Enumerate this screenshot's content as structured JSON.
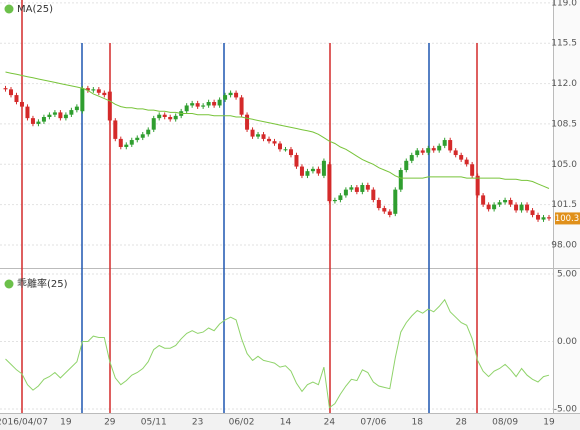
{
  "chart_data": [
    {
      "type": "candlestick",
      "title": "MA(25)",
      "up_color": "#2f9e2f",
      "down_color": "#d42a2a",
      "ylim": [
        96.0,
        119.25
      ],
      "yticks": [
        {
          "value": 119,
          "label": "119.0"
        },
        115.5,
        {
          "value": 112,
          "label": "112.0"
        },
        108.5,
        {
          "value": 105,
          "label": "105.0"
        },
        101.5,
        {
          "value": 98,
          "label": "98.00"
        }
      ],
      "grid": true,
      "last_value": 100.3,
      "last_color": "#e0901a",
      "open": [
        111.6,
        111.5,
        111.0,
        110.4,
        110.0,
        109.0,
        108.5,
        108.7,
        109.1,
        109.3,
        109.5,
        109.0,
        109.3,
        109.7,
        109.6,
        111.6,
        111.4,
        111.5,
        111.2,
        111.3,
        108.8,
        107.2,
        106.5,
        106.7,
        107.1,
        107.3,
        107.6,
        108.0,
        109.0,
        109.3,
        109.1,
        108.9,
        109.2,
        109.6,
        110.1,
        110.3,
        110.0,
        110.1,
        110.4,
        110.1,
        110.6,
        111.0,
        111.2,
        110.8,
        109.3,
        108.0,
        107.4,
        107.6,
        107.2,
        107.0,
        106.8,
        106.3,
        106.3,
        105.8,
        104.8,
        104.0,
        104.4,
        104.6,
        104.0,
        105.0,
        101.8,
        101.9,
        102.3,
        102.8,
        103.0,
        102.6,
        103.2,
        102.8,
        101.9,
        101.2,
        100.9,
        100.7,
        102.8,
        104.5,
        105.3,
        105.8,
        106.2,
        106.0,
        106.4,
        106.2,
        106.6,
        107.1,
        106.2,
        105.8,
        105.4,
        105.0,
        104.0,
        102.3,
        101.5,
        101.1,
        101.5,
        101.7,
        101.9,
        101.5,
        101.0,
        101.5,
        101.0,
        100.6,
        100.2,
        100.4
      ],
      "high": [
        111.8,
        111.7,
        111.2,
        110.6,
        110.2,
        109.2,
        108.9,
        109.3,
        109.5,
        109.7,
        109.7,
        109.5,
        109.9,
        110.2,
        111.8,
        111.8,
        111.7,
        111.7,
        111.4,
        111.5,
        109.0,
        107.4,
        106.9,
        107.3,
        107.5,
        107.8,
        108.2,
        109.2,
        109.5,
        109.5,
        109.3,
        109.4,
        109.8,
        110.3,
        110.5,
        110.5,
        110.3,
        110.6,
        110.6,
        110.8,
        111.2,
        111.4,
        111.4,
        111.0,
        109.5,
        108.2,
        107.8,
        107.8,
        107.4,
        107.2,
        107.0,
        106.5,
        106.5,
        106.0,
        105.0,
        104.6,
        104.8,
        104.8,
        105.5,
        105.2,
        102.1,
        102.5,
        103.0,
        103.2,
        103.2,
        103.4,
        103.4,
        103.0,
        102.1,
        101.4,
        101.1,
        103.0,
        104.7,
        105.5,
        106.0,
        106.4,
        106.4,
        106.6,
        106.6,
        106.8,
        107.3,
        107.3,
        106.4,
        106.0,
        105.6,
        105.2,
        104.2,
        102.5,
        101.7,
        101.7,
        101.9,
        102.1,
        102.1,
        101.7,
        101.7,
        101.7,
        101.2,
        100.8,
        100.6,
        100.6
      ],
      "low": [
        111.3,
        110.8,
        110.2,
        109.8,
        108.8,
        108.3,
        108.3,
        108.5,
        108.9,
        109.1,
        108.8,
        108.8,
        109.1,
        109.5,
        109.4,
        111.2,
        111.2,
        111.0,
        110.8,
        108.6,
        107.0,
        106.3,
        106.3,
        106.5,
        106.9,
        107.1,
        107.4,
        107.8,
        108.8,
        108.9,
        108.7,
        108.7,
        109.0,
        109.4,
        109.9,
        109.8,
        109.8,
        109.9,
        109.9,
        109.9,
        110.4,
        110.8,
        110.6,
        109.1,
        107.8,
        107.2,
        107.2,
        107.0,
        106.8,
        106.6,
        106.1,
        106.1,
        105.6,
        104.6,
        103.8,
        103.8,
        104.2,
        104.0,
        103.8,
        101.6,
        101.6,
        101.7,
        102.1,
        102.6,
        102.4,
        102.4,
        102.6,
        101.7,
        101.0,
        100.7,
        100.4,
        100.5,
        102.6,
        104.3,
        105.1,
        105.6,
        105.8,
        105.8,
        106.0,
        106.0,
        106.4,
        106.0,
        105.6,
        105.2,
        104.8,
        103.8,
        102.1,
        101.3,
        100.9,
        100.9,
        101.3,
        101.5,
        101.3,
        100.8,
        100.8,
        100.8,
        100.4,
        100.0,
        100.0,
        100.1
      ],
      "close": [
        111.5,
        111.0,
        110.4,
        110.0,
        109.0,
        108.5,
        108.7,
        109.1,
        109.3,
        109.5,
        109.0,
        109.3,
        109.7,
        110.0,
        111.6,
        111.4,
        111.5,
        111.2,
        111.0,
        108.8,
        107.2,
        106.5,
        106.7,
        107.1,
        107.3,
        107.6,
        108.0,
        109.0,
        109.3,
        109.1,
        108.9,
        109.2,
        109.6,
        110.1,
        110.3,
        110.0,
        110.1,
        110.4,
        110.1,
        110.6,
        111.0,
        111.2,
        110.8,
        109.3,
        108.0,
        107.4,
        107.6,
        107.2,
        107.0,
        106.8,
        106.3,
        106.3,
        105.8,
        104.8,
        104.0,
        104.4,
        104.6,
        104.2,
        105.3,
        101.8,
        101.9,
        102.3,
        102.8,
        103.0,
        102.6,
        103.2,
        102.8,
        101.9,
        101.2,
        100.9,
        100.6,
        102.8,
        104.5,
        105.3,
        105.8,
        106.2,
        106.0,
        106.4,
        106.2,
        106.6,
        107.1,
        106.2,
        105.8,
        105.4,
        105.0,
        104.0,
        102.3,
        101.5,
        101.1,
        101.5,
        101.7,
        101.9,
        101.5,
        101.0,
        101.5,
        101.0,
        100.6,
        100.2,
        100.4,
        100.3
      ],
      "series": [
        {
          "name": "MA(25)",
          "color": "#78c43a",
          "values": [
            113.0,
            112.9,
            112.8,
            112.7,
            112.6,
            112.5,
            112.4,
            112.3,
            112.2,
            112.1,
            112.0,
            111.9,
            111.8,
            111.7,
            111.6,
            111.4,
            111.1,
            110.9,
            110.7,
            110.5,
            110.2,
            110.0,
            109.9,
            109.9,
            109.8,
            109.8,
            109.7,
            109.7,
            109.6,
            109.6,
            109.5,
            109.5,
            109.4,
            109.4,
            109.4,
            109.3,
            109.3,
            109.3,
            109.2,
            109.2,
            109.2,
            109.2,
            109.1,
            109.1,
            109.0,
            108.9,
            108.8,
            108.7,
            108.6,
            108.5,
            108.4,
            108.3,
            108.2,
            108.1,
            108.0,
            107.9,
            107.8,
            107.6,
            107.3,
            107.0,
            106.8,
            106.5,
            106.3,
            106.0,
            105.7,
            105.4,
            105.2,
            105.0,
            104.7,
            104.5,
            104.3,
            104.0,
            103.8,
            103.8,
            103.8,
            103.8,
            103.8,
            103.9,
            103.9,
            103.9,
            103.9,
            103.9,
            103.9,
            103.9,
            103.8,
            103.8,
            103.8,
            103.8,
            103.8,
            103.8,
            103.8,
            103.7,
            103.7,
            103.7,
            103.6,
            103.6,
            103.5,
            103.3,
            103.1,
            102.9
          ]
        }
      ]
    },
    {
      "type": "line",
      "title": "乖離率(25)",
      "ylim": [
        -5.3,
        5.3
      ],
      "yticks": [
        {
          "value": 5,
          "label": "5.00"
        },
        {
          "value": 0,
          "label": "0.00"
        },
        {
          "value": -5,
          "label": "-5.00"
        }
      ],
      "grid": true,
      "categories": [
        null,
        null,
        null,
        "2016/04/07",
        null,
        null,
        null,
        null,
        null,
        null,
        null,
        "19",
        null,
        null,
        null,
        null,
        null,
        null,
        null,
        "29",
        null,
        null,
        null,
        null,
        null,
        null,
        null,
        "05/11",
        null,
        null,
        null,
        null,
        null,
        null,
        null,
        "23",
        null,
        null,
        null,
        null,
        null,
        null,
        null,
        "06/02",
        null,
        null,
        null,
        null,
        null,
        null,
        null,
        "14",
        null,
        null,
        null,
        null,
        null,
        null,
        null,
        "24",
        null,
        null,
        null,
        null,
        null,
        null,
        null,
        "07/06",
        null,
        null,
        null,
        null,
        null,
        null,
        null,
        "18",
        null,
        null,
        null,
        null,
        null,
        null,
        null,
        "28",
        null,
        null,
        null,
        null,
        null,
        null,
        null,
        "08/09",
        null,
        null,
        null,
        null,
        null,
        null,
        null,
        "19"
      ],
      "series": [
        {
          "name": "乖離率(25)",
          "color": "#8fd36a",
          "values": [
            -1.3,
            -1.7,
            -2.1,
            -2.4,
            -3.2,
            -3.6,
            -3.3,
            -2.8,
            -2.6,
            -2.3,
            -2.7,
            -2.3,
            -1.9,
            -1.5,
            0.0,
            0.0,
            0.4,
            0.3,
            0.3,
            -1.5,
            -2.7,
            -3.2,
            -2.9,
            -2.5,
            -2.3,
            -2.0,
            -1.5,
            -0.6,
            -0.3,
            -0.5,
            -0.5,
            -0.3,
            0.2,
            0.6,
            0.8,
            0.6,
            0.7,
            1.0,
            0.8,
            1.3,
            1.6,
            1.8,
            1.6,
            0.2,
            -0.9,
            -1.4,
            -1.1,
            -1.4,
            -1.5,
            -1.6,
            -1.9,
            -1.8,
            -2.2,
            -3.1,
            -3.7,
            -3.2,
            -3.0,
            -3.2,
            -1.9,
            -4.9,
            -4.6,
            -3.9,
            -3.3,
            -2.8,
            -2.9,
            -2.1,
            -2.3,
            -3.0,
            -3.3,
            -3.4,
            -3.5,
            -1.2,
            0.7,
            1.4,
            1.9,
            2.3,
            2.1,
            2.4,
            2.2,
            2.6,
            3.1,
            2.2,
            1.8,
            1.4,
            1.2,
            0.2,
            -1.4,
            -2.2,
            -2.6,
            -2.2,
            -2.0,
            -1.7,
            -2.1,
            -2.6,
            -2.0,
            -2.5,
            -2.8,
            -3.0,
            -2.6,
            -2.5
          ]
        }
      ]
    }
  ]
}
